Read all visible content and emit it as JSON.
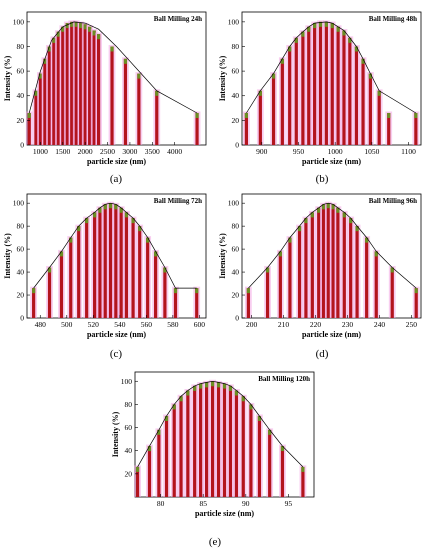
{
  "chart_data": [
    {
      "type": "bar",
      "panel": "(a)",
      "title": "Ball Milling 24h",
      "xlabel": "particle size (nm)",
      "ylabel": "Intensity (%)",
      "xlim": [
        700,
        4700
      ],
      "ylim": [
        0,
        108
      ],
      "xticks": [
        1000,
        1500,
        2000,
        2500,
        3000,
        3500,
        4000
      ],
      "yticks": [
        0,
        20,
        40,
        60,
        80,
        100
      ],
      "x": [
        750,
        900,
        1000,
        1100,
        1200,
        1300,
        1400,
        1500,
        1600,
        1700,
        1800,
        1900,
        2000,
        2100,
        2200,
        2300,
        2600,
        2900,
        3200,
        3600,
        4500
      ],
      "values": [
        26,
        44,
        58,
        70,
        80,
        87,
        92,
        96,
        99,
        100,
        100,
        99,
        98,
        96,
        93,
        90,
        80,
        70,
        58,
        44,
        26
      ],
      "curve": [
        [
          750,
          26
        ],
        [
          1000,
          60
        ],
        [
          1250,
          85
        ],
        [
          1500,
          96
        ],
        [
          1750,
          100
        ],
        [
          2000,
          99
        ],
        [
          2300,
          94
        ],
        [
          2700,
          80
        ],
        [
          3200,
          60
        ],
        [
          3600,
          44
        ],
        [
          4500,
          26
        ]
      ]
    },
    {
      "type": "bar",
      "panel": "(b)",
      "title": "Ball Milling 48h",
      "xlabel": "particle size (nm)",
      "ylabel": "Intensity (%)",
      "xlim": [
        873,
        1117
      ],
      "ylim": [
        0,
        108
      ],
      "xticks": [
        900,
        950,
        1000,
        1050,
        1100
      ],
      "yticks": [
        0,
        20,
        40,
        60,
        80,
        100
      ],
      "x": [
        879,
        898,
        916,
        928,
        938,
        947,
        956,
        964,
        972,
        980,
        988,
        996,
        1004,
        1012,
        1020,
        1029,
        1038,
        1048,
        1060,
        1073,
        1110
      ],
      "values": [
        26,
        44,
        58,
        70,
        80,
        87,
        92,
        96,
        99,
        100,
        100,
        99,
        96,
        93,
        87,
        80,
        70,
        58,
        44,
        26,
        26
      ],
      "curve": [
        [
          879,
          26
        ],
        [
          898,
          44
        ],
        [
          916,
          58
        ],
        [
          928,
          70
        ],
        [
          938,
          80
        ],
        [
          947,
          87
        ],
        [
          956,
          92
        ],
        [
          964,
          96
        ],
        [
          972,
          99
        ],
        [
          988,
          100
        ],
        [
          996,
          99
        ],
        [
          1004,
          96
        ],
        [
          1012,
          93
        ],
        [
          1020,
          87
        ],
        [
          1029,
          80
        ],
        [
          1038,
          70
        ],
        [
          1048,
          58
        ],
        [
          1060,
          44
        ],
        [
          1110,
          26
        ]
      ]
    },
    {
      "type": "bar",
      "panel": "(c)",
      "title": "Ball Milling 72h",
      "xlabel": "particle size (nm)",
      "ylabel": "Intensity (%)",
      "xlim": [
        470,
        605
      ],
      "ylim": [
        0,
        108
      ],
      "xticks": [
        480,
        500,
        520,
        540,
        560,
        580,
        600
      ],
      "yticks": [
        0,
        20,
        40,
        60,
        80,
        100
      ],
      "x": [
        475,
        487,
        496,
        503,
        509,
        515,
        521,
        525,
        529,
        533,
        537,
        541,
        545,
        550,
        555,
        561,
        567,
        574,
        582,
        598
      ],
      "values": [
        26,
        44,
        58,
        70,
        80,
        87,
        92,
        96,
        99,
        100,
        99,
        96,
        92,
        87,
        80,
        70,
        58,
        44,
        26,
        26
      ],
      "curve": [
        [
          475,
          26
        ],
        [
          487,
          44
        ],
        [
          496,
          58
        ],
        [
          503,
          70
        ],
        [
          509,
          80
        ],
        [
          515,
          87
        ],
        [
          521,
          92
        ],
        [
          525,
          96
        ],
        [
          529,
          99
        ],
        [
          533,
          100
        ],
        [
          537,
          99
        ],
        [
          541,
          96
        ],
        [
          545,
          92
        ],
        [
          550,
          87
        ],
        [
          555,
          80
        ],
        [
          561,
          70
        ],
        [
          567,
          58
        ],
        [
          574,
          44
        ],
        [
          582,
          26
        ],
        [
          598,
          26
        ]
      ]
    },
    {
      "type": "bar",
      "panel": "(d)",
      "title": "Ball Milling 96h",
      "xlabel": "particle size (nm)",
      "ylabel": "Intensity (%)",
      "xlim": [
        197,
        253
      ],
      "ylim": [
        0,
        108
      ],
      "xticks": [
        200,
        210,
        220,
        230,
        240,
        250
      ],
      "yticks": [
        0,
        20,
        40,
        60,
        80,
        100
      ],
      "x": [
        199,
        205,
        209,
        212,
        215,
        217,
        219,
        221,
        222.5,
        224,
        225.5,
        227,
        229,
        231,
        233,
        236,
        239,
        244,
        251.5
      ],
      "values": [
        26,
        44,
        58,
        70,
        80,
        87,
        92,
        96,
        99,
        100,
        99,
        96,
        92,
        87,
        80,
        70,
        58,
        44,
        26
      ],
      "curve": [
        [
          199,
          26
        ],
        [
          205,
          44
        ],
        [
          209,
          58
        ],
        [
          212,
          70
        ],
        [
          215,
          80
        ],
        [
          217,
          87
        ],
        [
          219,
          92
        ],
        [
          221,
          96
        ],
        [
          222.5,
          99
        ],
        [
          224,
          100
        ],
        [
          225.5,
          99
        ],
        [
          227,
          96
        ],
        [
          229,
          92
        ],
        [
          231,
          87
        ],
        [
          233,
          80
        ],
        [
          236,
          70
        ],
        [
          239,
          58
        ],
        [
          244,
          44
        ],
        [
          251.5,
          26
        ]
      ]
    },
    {
      "type": "bar",
      "panel": "(e)",
      "title": "Ball Milling 120h",
      "xlabel": "particle size (nm)",
      "ylabel": "Intensity (%)",
      "xlim": [
        77,
        98
      ],
      "ylim": [
        0,
        108
      ],
      "xticks": [
        80,
        85,
        90,
        95
      ],
      "yticks": [
        20,
        40,
        60,
        80,
        100
      ],
      "x": [
        77.3,
        78.7,
        79.8,
        80.7,
        81.6,
        82.4,
        83.2,
        84.0,
        84.7,
        85.4,
        86.1,
        86.8,
        87.5,
        88.2,
        88.9,
        89.7,
        90.6,
        91.6,
        92.8,
        94.3,
        96.7
      ],
      "values": [
        26,
        44,
        58,
        70,
        80,
        87,
        92,
        96,
        98,
        99,
        100,
        99,
        98,
        96,
        92,
        87,
        80,
        70,
        58,
        44,
        26
      ],
      "curve": [
        [
          77.3,
          26
        ],
        [
          78.7,
          44
        ],
        [
          79.8,
          58
        ],
        [
          80.7,
          70
        ],
        [
          81.6,
          80
        ],
        [
          82.4,
          87
        ],
        [
          83.2,
          92
        ],
        [
          84.0,
          96
        ],
        [
          84.7,
          98
        ],
        [
          85.4,
          99
        ],
        [
          86.1,
          100
        ],
        [
          86.8,
          99
        ],
        [
          87.5,
          98
        ],
        [
          88.2,
          96
        ],
        [
          88.9,
          92
        ],
        [
          89.7,
          87
        ],
        [
          90.6,
          80
        ],
        [
          91.6,
          70
        ],
        [
          92.8,
          58
        ],
        [
          94.3,
          44
        ],
        [
          96.7,
          26
        ]
      ]
    }
  ],
  "colors": {
    "bar_fill": "#b3141d",
    "bar_tip": "#6b8e23",
    "bar_glow": "#f2a6e4",
    "curve": "#000000",
    "axis": "#000000"
  }
}
